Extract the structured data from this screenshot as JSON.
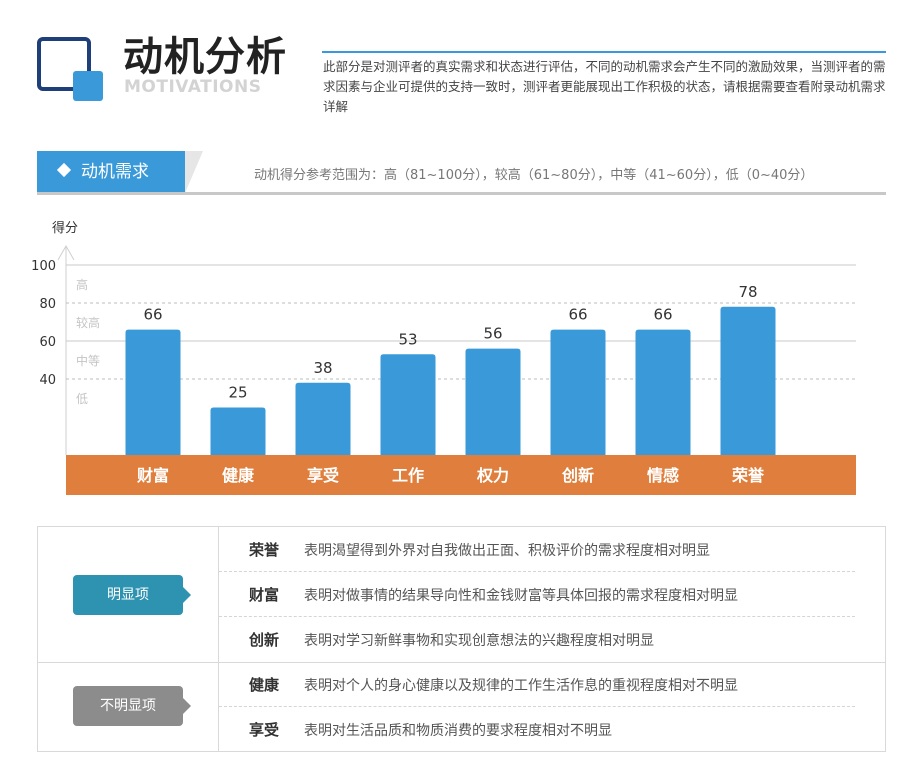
{
  "header": {
    "title": "动机分析",
    "subtitle": "MOTIVATIONS",
    "intro": "此部分是对测评者的真实需求和状态进行评估，不同的动机需求会产生不同的激励效果，当测评者的需求因素与企业可提供的支持一致时，测评者更能展现出工作积极的状态，请根据需要查看附录动机需求详解"
  },
  "section": {
    "tab_label": "动机需求",
    "range_note": "动机得分参考范围为：高（81~100分），较高（61~80分），中等（41~60分），低（0~40分）"
  },
  "chart_data": {
    "type": "bar",
    "ylabel": "得分",
    "ylim": [
      0,
      100
    ],
    "yticks": [
      40,
      60,
      80,
      100
    ],
    "levels": [
      "高",
      "较高",
      "中等",
      "低"
    ],
    "categories": [
      "财富",
      "健康",
      "享受",
      "工作",
      "权力",
      "创新",
      "情感",
      "荣誉"
    ],
    "values": [
      66,
      25,
      38,
      53,
      56,
      66,
      66,
      78
    ],
    "bar_color": "#3a9ad9",
    "category_band_color": "#e07f3d",
    "grid": true
  },
  "table": {
    "group_a": {
      "label": "明显项",
      "rows": [
        {
          "key": "荣誉",
          "desc": "表明渴望得到外界对自我做出正面、积极评价的需求程度相对明显"
        },
        {
          "key": "财富",
          "desc": "表明对做事情的结果导向性和金钱财富等具体回报的需求程度相对明显"
        },
        {
          "key": "创新",
          "desc": "表明对学习新鲜事物和实现创意想法的兴趣程度相对明显"
        }
      ]
    },
    "group_b": {
      "label": "不明显项",
      "rows": [
        {
          "key": "健康",
          "desc": "表明对个人的身心健康以及规律的工作生活作息的重视程度相对不明显"
        },
        {
          "key": "享受",
          "desc": "表明对生活品质和物质消费的要求程度相对不明显"
        }
      ]
    }
  }
}
